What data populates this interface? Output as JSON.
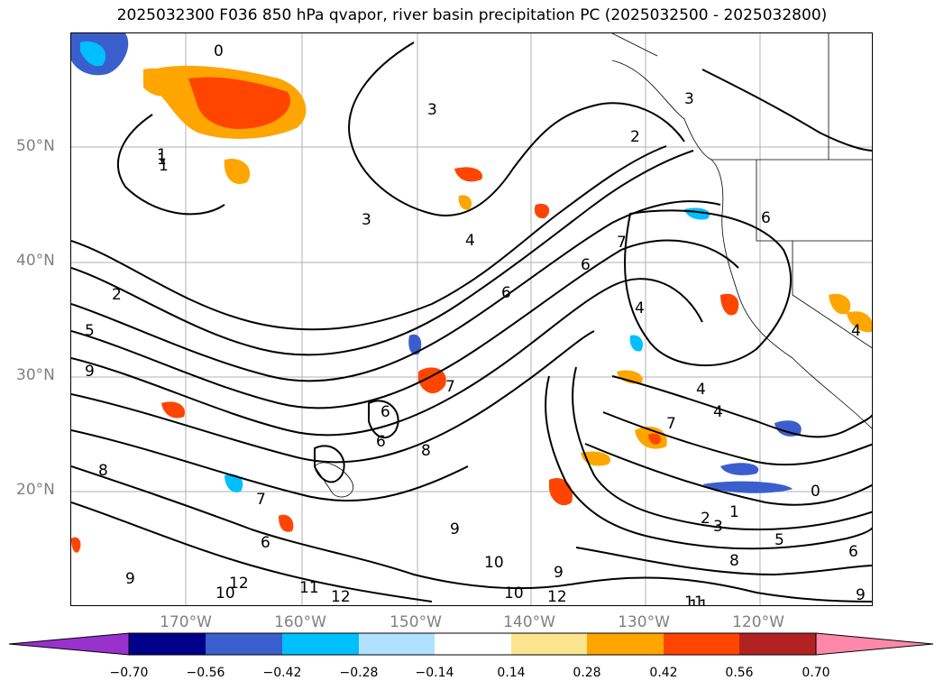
{
  "title": "2025032300 F036 850 hPa qvapor, river basin precipitation PC (2025032500 - 2025032800)",
  "lat_labels": [
    "50°N",
    "40°N",
    "30°N",
    "20°N"
  ],
  "lon_labels": [
    "170°W",
    "160°W",
    "150°W",
    "140°W",
    "130°W",
    "120°W"
  ],
  "colorbar": {
    "ticks": [
      "−0.70",
      "−0.56",
      "−0.42",
      "−0.28",
      "−0.14",
      "0.14",
      "0.28",
      "0.42",
      "0.56",
      "0.70"
    ],
    "colors": [
      "#9932cc",
      "#00008b",
      "#3a5fcd",
      "#00bfff",
      "#b0e2ff",
      "#ffffff",
      "#fbe68f",
      "#ffa500",
      "#ff4500",
      "#b22222",
      "#ff88aa"
    ]
  },
  "contour_labels": [
    "0",
    "1",
    "2",
    "2",
    "3",
    "3",
    "3",
    "1",
    "4",
    "4",
    "4",
    "4",
    "6",
    "7",
    "6",
    "7",
    "6",
    "8",
    "9",
    "9",
    "10",
    "11",
    "12",
    "12",
    "10",
    "12",
    "11",
    "9",
    "8",
    "10",
    "6",
    "5",
    "2",
    "3",
    "1",
    "0",
    "5",
    "6",
    "9",
    "6",
    "7",
    "8",
    "9",
    "11",
    "4",
    "6",
    "7",
    "1"
  ],
  "colors": {
    "shade_orange": "#ffa500",
    "shade_red": "#ff4500",
    "shade_yellow": "#fbe68f",
    "shade_blue": "#00bfff",
    "shade_dblue": "#3a5fcd"
  }
}
